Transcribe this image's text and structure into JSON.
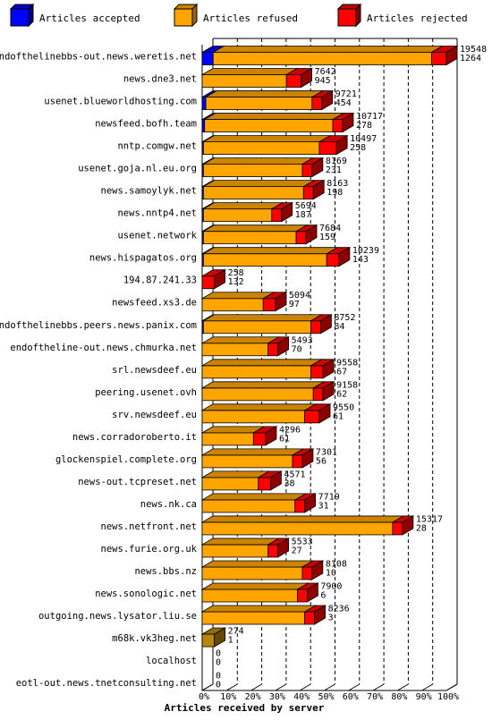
{
  "chart_data": {
    "type": "bar",
    "orientation": "horizontal",
    "stacked": true,
    "xlabel": "Articles received by server",
    "xlim": [
      0,
      100
    ],
    "x_unit": "%",
    "xticks": [
      "0%",
      "10%",
      "20%",
      "30%",
      "40%",
      "50%",
      "60%",
      "70%",
      "80%",
      "90%",
      "100%"
    ],
    "legend": [
      {
        "name": "Articles accepted",
        "color": "#0000ff"
      },
      {
        "name": "Articles refused",
        "color": "#ffa500"
      },
      {
        "name": "Articles rejected",
        "color": "#ff0000"
      }
    ],
    "legend_position": "top",
    "colors": {
      "accepted": "#0000ff",
      "refused": "#ffa500",
      "rejected": "#ff0000",
      "refused_only_row": "#b8860b"
    },
    "categories": [
      "endofthelinebbs-out.news.weretis.net",
      "news.dne3.net",
      "usenet.blueworldhosting.com",
      "newsfeed.bofh.team",
      "nntp.comgw.net",
      "usenet.goja.nl.eu.org",
      "news.samoylyk.net",
      "news.nntp4.net",
      "usenet.network",
      "news.hispagatos.org",
      "194.87.241.33",
      "newsfeed.xs3.de",
      "endofthelinebbs.peers.news.panix.com",
      "endoftheline-out.news.chmurka.net",
      "srl.newsdeef.eu",
      "peering.usenet.ovh",
      "srv.newsdeef.eu",
      "news.corradoroberto.it",
      "glockenspiel.complete.org",
      "news-out.tcpreset.net",
      "news.nk.ca",
      "news.netfront.net",
      "news.furie.org.uk",
      "news.bbs.nz",
      "news.sonologic.net",
      "outgoing.news.lysator.liu.se",
      "m68k.vk3heg.net",
      "localhost",
      "eotl-out.news.tnetconsulting.net"
    ],
    "label_total": [
      "19548",
      "7642",
      "9721",
      "10717",
      "10497",
      "8169",
      "8163",
      "5694",
      "7684",
      "10239",
      "258",
      "5094",
      "8752",
      "5493",
      "9558",
      "9158",
      "9550",
      "4296",
      "7301",
      "4571",
      "7719",
      "15317",
      "5533",
      "8108",
      "7900",
      "8236",
      "274",
      "0",
      "0"
    ],
    "label_rejected": [
      "1264",
      "945",
      "454",
      "278",
      "258",
      "231",
      "198",
      "187",
      "159",
      "143",
      "132",
      "97",
      "84",
      "70",
      "67",
      "62",
      "61",
      "61",
      "56",
      "38",
      "31",
      "28",
      "27",
      "10",
      "6",
      "3",
      "1",
      "0",
      "0"
    ],
    "series": [
      {
        "name": "Articles accepted",
        "values": [
          4.5,
          0,
          1.5,
          1,
          0.5,
          0.5,
          0.5,
          0.5,
          0.5,
          0.5,
          0,
          0,
          0.5,
          0,
          0,
          0,
          0,
          0,
          0,
          0,
          0,
          0,
          0,
          0,
          0,
          0,
          0,
          0,
          0
        ]
      },
      {
        "name": "Articles refused",
        "values": [
          89.5,
          34.5,
          43.5,
          52.5,
          47.5,
          40.5,
          41,
          28,
          38,
          50.5,
          0,
          25,
          44,
          27,
          44.5,
          45.5,
          42,
          21,
          37,
          23,
          38,
          78,
          27,
          41,
          39,
          42,
          5,
          0,
          0
        ]
      },
      {
        "name": "Articles rejected",
        "values": [
          6,
          6,
          4,
          4,
          7,
          4,
          4,
          4,
          4,
          5,
          5,
          5,
          4,
          4,
          5,
          4,
          6,
          5,
          4,
          5,
          4,
          4,
          4,
          4,
          4,
          4,
          0,
          0,
          0
        ]
      }
    ]
  }
}
